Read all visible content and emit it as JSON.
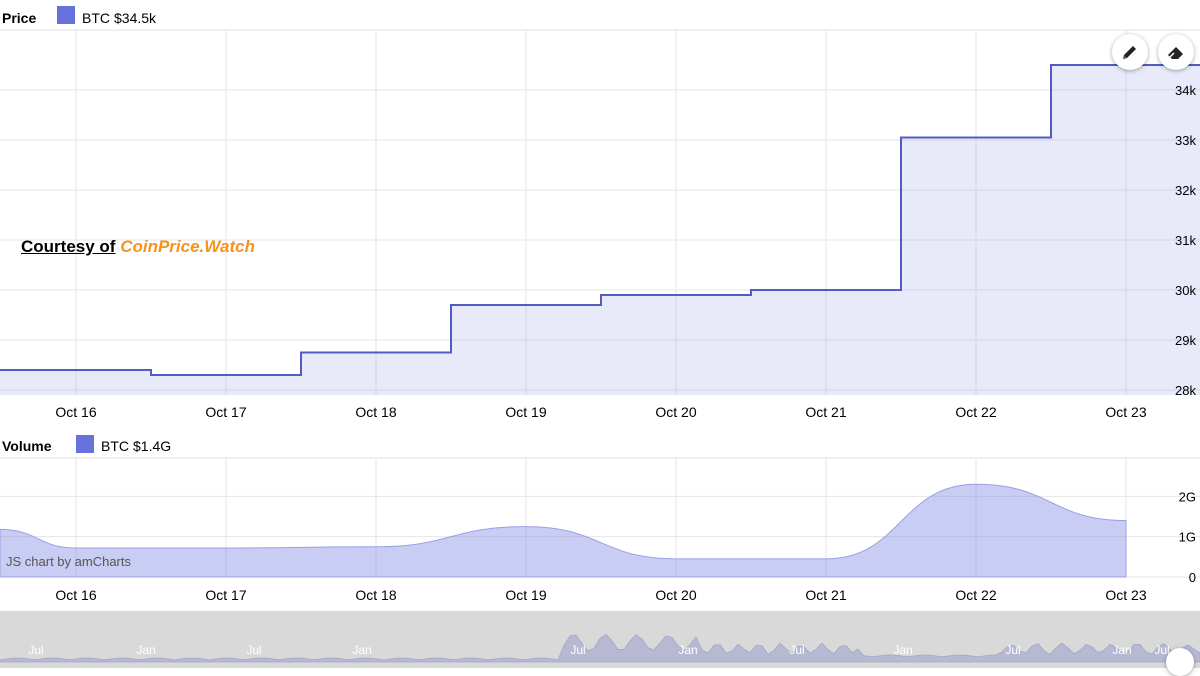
{
  "price_panel": {
    "title": "Price",
    "legend_label": "BTC",
    "legend_value": "$34.5k",
    "series_color": "#6771dc"
  },
  "volume_panel": {
    "title": "Volume",
    "legend_label": "BTC",
    "legend_value": "$1.4G",
    "series_color": "#6771dc"
  },
  "courtesy": {
    "prefix": "Courtesy of",
    "brand": "CoinPrice.Watch",
    "brand_color": "#f7931a"
  },
  "credit": "JS chart by amCharts",
  "tools": {
    "pencil": "pencil-icon",
    "eraser": "eraser-icon"
  },
  "chart_data": [
    {
      "type": "area",
      "name": "price",
      "step": true,
      "x": [
        "Oct 16",
        "Oct 17",
        "Oct 18",
        "Oct 19",
        "Oct 20",
        "Oct 21",
        "Oct 22",
        "Oct 23"
      ],
      "values": [
        28.4,
        28.3,
        28.75,
        29.7,
        29.9,
        30.0,
        33.05,
        34.5
      ],
      "unit": "k",
      "ylim": [
        27.9,
        35.2
      ],
      "yticks": [
        "28k",
        "29k",
        "30k",
        "31k",
        "32k",
        "33k",
        "34k"
      ],
      "grid": true
    },
    {
      "type": "area",
      "name": "volume",
      "x": [
        "Oct 16",
        "Oct 17",
        "Oct 18",
        "Oct 19",
        "Oct 20",
        "Oct 21",
        "Oct 22",
        "Oct 23"
      ],
      "values": [
        0.72,
        0.72,
        0.75,
        1.25,
        0.45,
        0.45,
        2.3,
        1.4
      ],
      "unit": "G",
      "ylim": [
        0,
        2.95
      ],
      "yticks": [
        "0",
        "1G",
        "2G"
      ],
      "grid": true
    },
    {
      "type": "area",
      "name": "navigator",
      "x_labels": [
        "Jul",
        "Jan",
        "Jul",
        "Jan",
        "Jul",
        "Jan",
        "Jul",
        "Jan",
        "Jul",
        "Jan",
        "Jul"
      ]
    }
  ]
}
